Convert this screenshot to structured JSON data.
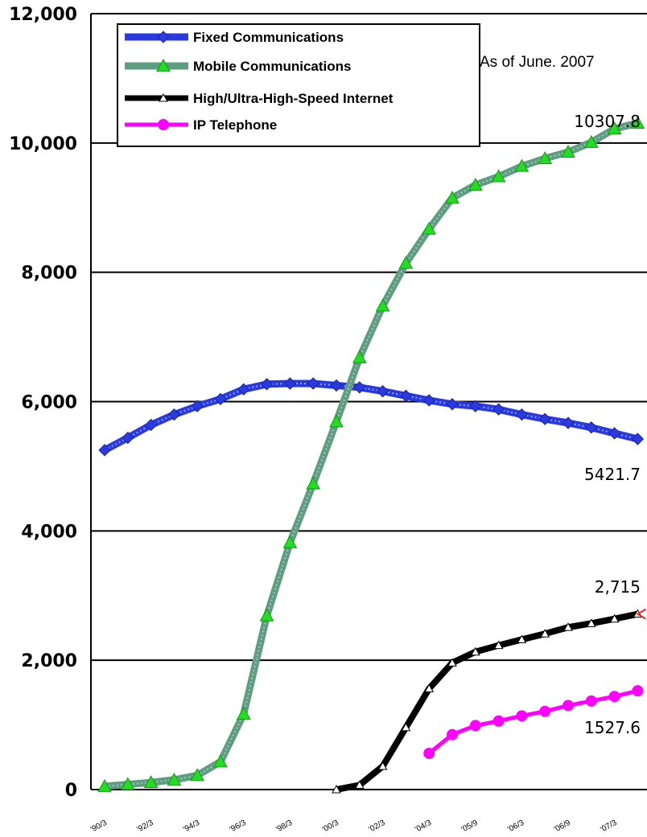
{
  "chart_data": {
    "type": "line",
    "note": "As of June. 2007",
    "x_tick_labels": [
      "'90/3",
      "'92/3",
      "'94/3",
      "'96/3",
      "'98/3",
      "'00/3",
      "'02/3",
      "'04/3",
      "'05/9",
      "'06/3",
      "'06/9",
      "'07/3"
    ],
    "y_tick_labels": [
      "0",
      "2,000",
      "4,000",
      "6,000",
      "8,000",
      "10,000",
      "12,000"
    ],
    "ylim": [
      0,
      12000
    ],
    "grid": "horizontal",
    "legend_position": "top-left",
    "series": [
      {
        "name": "Fixed Communications",
        "color": "#2a3ae0",
        "marker": "diamond",
        "values": [
          5250,
          5440,
          5640,
          5800,
          5930,
          6040,
          6190,
          6270,
          6280,
          6280,
          6250,
          6220,
          6160,
          6090,
          6020,
          5960,
          5930,
          5880,
          5800,
          5730,
          5670,
          5600,
          5510,
          5421.7
        ],
        "end_label": "5421.7"
      },
      {
        "name": "Mobile Communications",
        "color": "#6aa68a",
        "marker": "triangle",
        "values": [
          50,
          80,
          110,
          150,
          220,
          430,
          1170,
          2690,
          3820,
          4730,
          5690,
          6680,
          7480,
          8140,
          8670,
          9150,
          9350,
          9480,
          9640,
          9760,
          9860,
          10010,
          10220,
          10307.8
        ],
        "end_label": "10307.8"
      },
      {
        "name": "High/Ultra-High-Speed Internet",
        "color": "#000000",
        "marker": "triangle",
        "start_index": 10,
        "values": [
          0,
          70,
          360,
          960,
          1560,
          1960,
          2130,
          2230,
          2320,
          2410,
          2510,
          2570,
          2640,
          2715
        ],
        "end_label": "2,715"
      },
      {
        "name": "IP Telephone",
        "color": "#ff00ff",
        "marker": "circle",
        "start_index": 14,
        "values": [
          560,
          850,
          990,
          1060,
          1140,
          1210,
          1300,
          1370,
          1440,
          1527.6
        ],
        "end_label": "1527.6"
      }
    ]
  }
}
